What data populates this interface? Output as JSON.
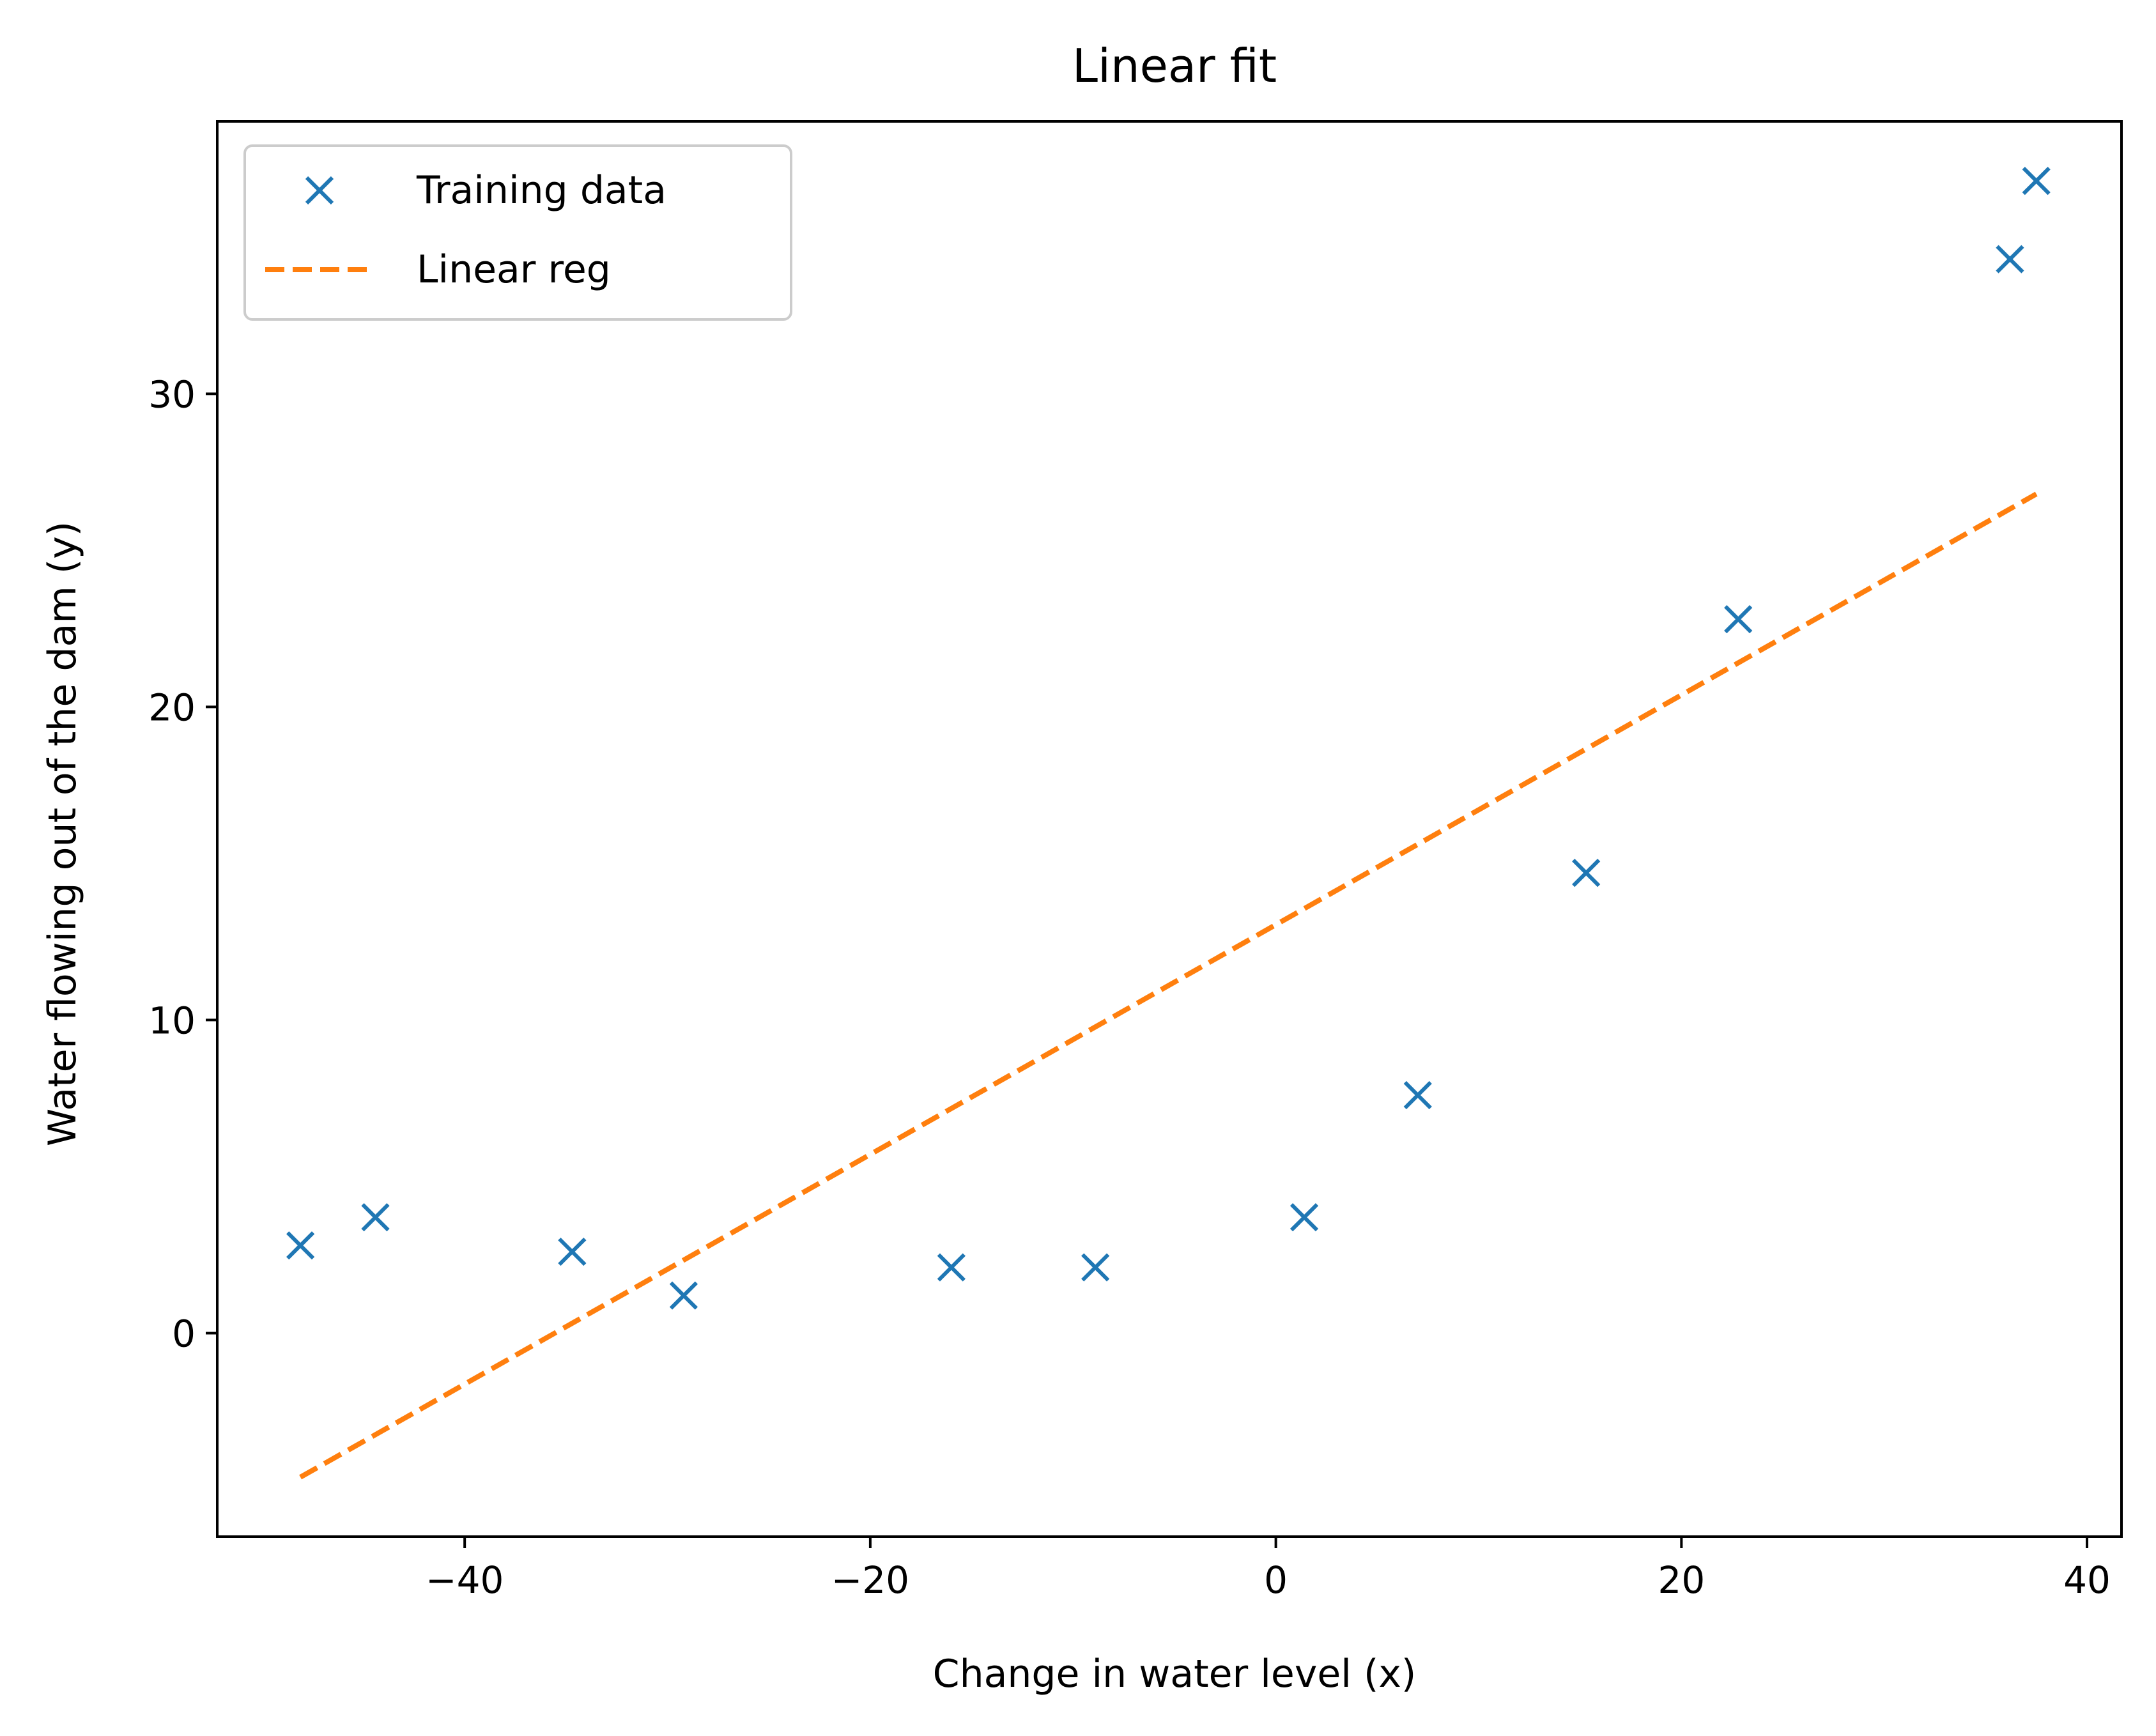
{
  "chart_data": {
    "type": "scatter",
    "title": "Linear fit",
    "xlabel": "Change in water level (x)",
    "ylabel": "Water flowing out of the dam (y)",
    "xlim": [
      -52.2,
      41.7
    ],
    "ylim": [
      -6.5,
      38.7
    ],
    "xticks": [
      -40,
      -20,
      0,
      20,
      40
    ],
    "yticks": [
      0,
      10,
      20,
      30
    ],
    "xtick_labels": [
      "−40",
      "−20",
      "0",
      "20",
      "40"
    ],
    "ytick_labels": [
      "0",
      "10",
      "20",
      "30"
    ],
    "grid": false,
    "legend_position": "top-left",
    "series": [
      {
        "name": "Training data",
        "kind": "scatter",
        "marker": "x",
        "color": "#1f77b4",
        "points": [
          {
            "x": -48.1,
            "y": 2.8
          },
          {
            "x": -44.4,
            "y": 3.7
          },
          {
            "x": -34.7,
            "y": 2.6
          },
          {
            "x": -29.2,
            "y": 1.2
          },
          {
            "x": -16.0,
            "y": 2.1
          },
          {
            "x": -8.9,
            "y": 2.1
          },
          {
            "x": 1.4,
            "y": 3.7
          },
          {
            "x": 7.0,
            "y": 7.6
          },
          {
            "x": 15.3,
            "y": 14.7
          },
          {
            "x": 22.8,
            "y": 22.8
          },
          {
            "x": 36.2,
            "y": 34.3
          },
          {
            "x": 37.5,
            "y": 36.8
          }
        ]
      },
      {
        "name": "Linear reg",
        "kind": "line",
        "dash": "dashed",
        "color": "#ff7f0e",
        "points": [
          {
            "x": -48.1,
            "y": -4.6
          },
          {
            "x": 37.5,
            "y": 26.8
          }
        ]
      }
    ]
  }
}
